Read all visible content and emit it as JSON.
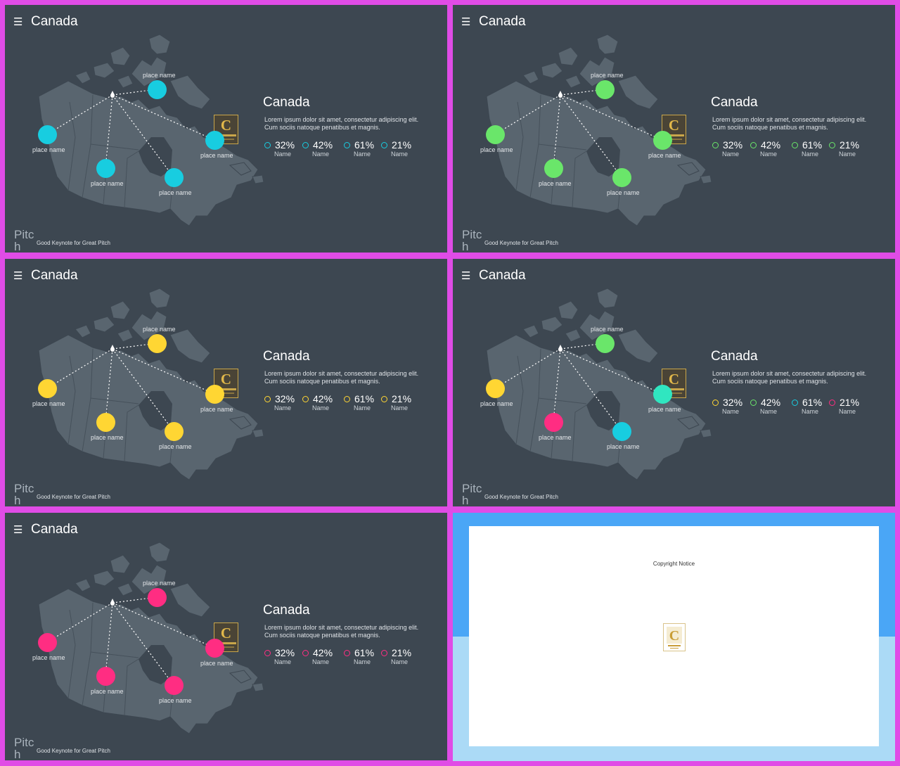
{
  "slides": [
    {
      "title": "Canada",
      "heading": "Canada",
      "description": "Lorem ipsum dolor sit amet, consectetur adipiscing elit. Cum sociis natoque penatibus et magnis.",
      "brand": "Pitch",
      "tagline": "Good Keynote for Great Pitch",
      "place_label": "place name",
      "pin_colors": [
        "#18cde0",
        "#18cde0",
        "#18cde0",
        "#18cde0",
        "#18cde0"
      ],
      "stats": [
        {
          "value": "32%",
          "name": "Name",
          "color": "#18cde0"
        },
        {
          "value": "42%",
          "name": "Name",
          "color": "#18cde0"
        },
        {
          "value": "61%",
          "name": "Name",
          "color": "#18cde0"
        },
        {
          "value": "21%",
          "name": "Name",
          "color": "#18cde0"
        }
      ]
    },
    {
      "title": "Canada",
      "heading": "Canada",
      "description": "Lorem ipsum dolor sit amet, consectetur adipiscing elit. Cum sociis natoque penatibus et magnis.",
      "brand": "Pitch",
      "tagline": "Good Keynote for Great Pitch",
      "place_label": "place name",
      "pin_colors": [
        "#6ae66a",
        "#6ae66a",
        "#6ae66a",
        "#6ae66a",
        "#6ae66a"
      ],
      "stats": [
        {
          "value": "32%",
          "name": "Name",
          "color": "#6ae66a"
        },
        {
          "value": "42%",
          "name": "Name",
          "color": "#6ae66a"
        },
        {
          "value": "61%",
          "name": "Name",
          "color": "#6ae66a"
        },
        {
          "value": "21%",
          "name": "Name",
          "color": "#6ae66a"
        }
      ]
    },
    {
      "title": "Canada",
      "heading": "Canada",
      "description": "Lorem ipsum dolor sit amet, consectetur adipiscing elit. Cum sociis natoque penatibus et magnis.",
      "brand": "Pitch",
      "tagline": "Good Keynote for Great Pitch",
      "place_label": "place name",
      "pin_colors": [
        "#ffd633",
        "#ffd633",
        "#ffd633",
        "#ffd633",
        "#ffd633"
      ],
      "stats": [
        {
          "value": "32%",
          "name": "Name",
          "color": "#ffd633"
        },
        {
          "value": "42%",
          "name": "Name",
          "color": "#ffd633"
        },
        {
          "value": "61%",
          "name": "Name",
          "color": "#ffd633"
        },
        {
          "value": "21%",
          "name": "Name",
          "color": "#ffd633"
        }
      ]
    },
    {
      "title": "Canada",
      "heading": "Canada",
      "description": "Lorem ipsum dolor sit amet, consectetur adipiscing elit. Cum sociis natoque penatibus et magnis.",
      "brand": "Pitch",
      "tagline": "Good Keynote for Great Pitch",
      "place_label": "place name",
      "pin_colors": [
        "#6ae66a",
        "#ffd633",
        "#ff2d82",
        "#18cde0",
        "#30e6c0"
      ],
      "stats": [
        {
          "value": "32%",
          "name": "Name",
          "color": "#ffd633"
        },
        {
          "value": "42%",
          "name": "Name",
          "color": "#6ae66a"
        },
        {
          "value": "61%",
          "name": "Name",
          "color": "#18cde0"
        },
        {
          "value": "21%",
          "name": "Name",
          "color": "#ff2d82"
        }
      ]
    },
    {
      "title": "Canada",
      "heading": "Canada",
      "description": "Lorem ipsum dolor sit amet, consectetur adipiscing elit. Cum sociis natoque penatibus et magnis.",
      "brand": "Pitch",
      "tagline": "Good Keynote for Great Pitch",
      "place_label": "place name",
      "pin_colors": [
        "#ff2d82",
        "#ff2d82",
        "#ff2d82",
        "#ff2d82",
        "#ff2d82"
      ],
      "stats": [
        {
          "value": "32%",
          "name": "Name",
          "color": "#ff2d82"
        },
        {
          "value": "42%",
          "name": "Name",
          "color": "#ff2d82"
        },
        {
          "value": "61%",
          "name": "Name",
          "color": "#ff2d82"
        },
        {
          "value": "21%",
          "name": "Name",
          "color": "#ff2d82"
        }
      ]
    }
  ],
  "copyright": {
    "title": "Copyright Notice"
  },
  "icons": {
    "menu": "hamburger-menu-icon",
    "logo": "contents-logo-icon"
  },
  "colors": {
    "background_border": "#e04ce6",
    "slide_bg": "#3d4751"
  }
}
